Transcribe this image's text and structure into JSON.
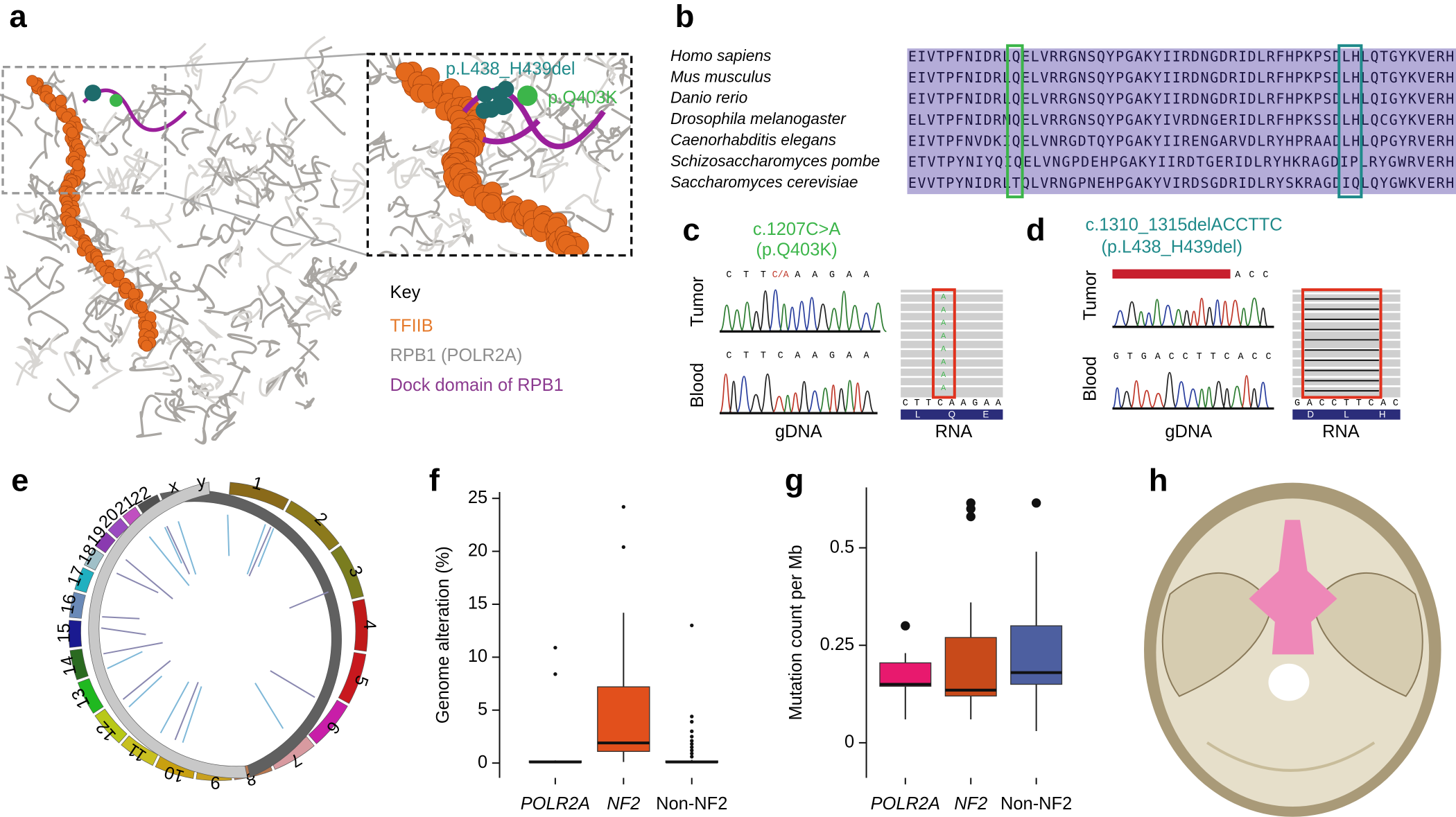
{
  "panels": [
    "a",
    "b",
    "c",
    "d",
    "e",
    "f",
    "g",
    "h"
  ],
  "panel_a": {
    "inset_labels": [
      "p.L438_H439del",
      "p.Q403K"
    ],
    "key_title": "Key",
    "key": [
      "TFIIB",
      "RPB1 (POLR2A)",
      "Dock domain of RPB1"
    ]
  },
  "panel_b": {
    "species": [
      "Homo sapiens",
      "Mus musculus",
      "Danio rerio",
      "Drosophila melanogaster",
      "Caenorhabditis elegans",
      "Schizosaccharomyces pombe",
      "Saccharomyces cerevisiae"
    ],
    "sequences": [
      "EIVTPFNIDRLQELVRRGNSQYPGAKYIIRDNGDRIDLRFHPKPSDLHLQTGYKVERH",
      "EIVTPFNIDRLQELVRRGNSQYPGAKYIIRDNGDRIDLRFHPKPSDLHLQTGYKVERH",
      "EIVTPFNIDRLQELVRRGNSQYPGAKYIIRDNGDRIDLRFHPKPSDLHLQIGYKVERH",
      "ELVTPFNIDRMQELVRRGNSQYPGAKYIVRDNGERIDLRFHPKSSDLHLQCGYKVERH",
      "EIVTPFNVDKIQELVNRGDTQYPGAKYIIRENGARVDLRYHPRAADLHLQPGYRVERH",
      "ETVTPYNIYQIQELVNGPDEHPGAKYIIRDTGERIDLRYHKRAGDIPLRYGWRVERH",
      "EVVTPYNIDRLTQLVRNGPNEHPGAKYVIRDSGDRIDLRYSKRAGDIQLQYGWKVERH"
    ]
  },
  "panel_c": {
    "title": [
      "c.1207C>A",
      "(p.Q403K)"
    ],
    "rows": [
      "Tumor",
      "Blood"
    ],
    "columns": [
      "gDNA",
      "RNA"
    ],
    "tumor_seq": [
      "C",
      "T",
      "T",
      "C/A",
      "A",
      "A",
      "G",
      "A",
      "A"
    ],
    "blood_seq": [
      "C",
      "T",
      "T",
      "C",
      "A",
      "A",
      "G",
      "A",
      "A"
    ],
    "rna_seq": [
      "C",
      "T",
      "T",
      "C",
      "A",
      "A",
      "G",
      "A",
      "A"
    ],
    "protein": [
      "L",
      "Q",
      "E"
    ]
  },
  "panel_d": {
    "title": [
      "c.1310_1315delACCTTC",
      "(p.L438_H439del)"
    ],
    "rows": [
      "Tumor",
      "Blood"
    ],
    "columns": [
      "gDNA",
      "RNA"
    ],
    "tumor_seq": [
      "A",
      "C",
      "C"
    ],
    "blood_seq": [
      "G",
      "T",
      "G",
      "A",
      "C",
      "C",
      "T",
      "T",
      "C",
      "A",
      "C",
      "C"
    ],
    "rna_seq": [
      "G",
      "A",
      "C",
      "C",
      "T",
      "T",
      "C",
      "A",
      "C"
    ],
    "protein": [
      "D",
      "L",
      "H"
    ]
  },
  "panel_e": {
    "chromosomes": [
      "1",
      "2",
      "3",
      "4",
      "5",
      "6",
      "7",
      "8",
      "9",
      "10",
      "11",
      "12",
      "13",
      "14",
      "15",
      "16",
      "17",
      "18",
      "19",
      "20",
      "21",
      "22",
      "x",
      "y"
    ]
  },
  "chart_data": [
    {
      "type": "box",
      "ylabel": "Genome alteration (%)",
      "categories": [
        "POLR2A",
        "NF2",
        "Non-NF2"
      ],
      "ylim": [
        -1.4,
        25.6
      ],
      "yticks": [
        0,
        5,
        10,
        15,
        20,
        25
      ],
      "boxes": [
        {
          "color": "#a3306a",
          "min": 0,
          "q1": 0.05,
          "median": 0.1,
          "q3": 0.2,
          "max": 0.25,
          "outliers": [
            8.4,
            10.9
          ]
        },
        {
          "color": "#e2501c",
          "min": 0.1,
          "q1": 1.1,
          "median": 1.9,
          "q3": 7.2,
          "max": 14.2,
          "outliers": [
            20.4,
            24.2
          ]
        },
        {
          "color": "#4a5a9a",
          "min": 0,
          "q1": 0.05,
          "median": 0.1,
          "q3": 0.2,
          "max": 0.3,
          "outliers": [
            0.6,
            0.9,
            1.2,
            1.5,
            1.8,
            2.1,
            2.5,
            3.0,
            3.9,
            4.4,
            13.0
          ]
        }
      ]
    },
    {
      "type": "box",
      "ylabel": "Mutation count per Mb",
      "categories": [
        "POLR2A",
        "NF2",
        "Non-NF2"
      ],
      "ylim": [
        -0.09,
        0.655
      ],
      "yticks": [
        0,
        0.25,
        0.5
      ],
      "boxes": [
        {
          "color": "#e8196e",
          "min": 0.06,
          "q1": 0.145,
          "median": 0.15,
          "q3": 0.205,
          "max": 0.23,
          "outliers": [
            0.3
          ]
        },
        {
          "color": "#c84a1a",
          "min": 0.06,
          "q1": 0.12,
          "median": 0.135,
          "q3": 0.27,
          "max": 0.36,
          "outliers": [
            0.58,
            0.6,
            0.615
          ]
        },
        {
          "color": "#4d5fa0",
          "min": 0.03,
          "q1": 0.15,
          "median": 0.18,
          "q3": 0.3,
          "max": 0.49,
          "outliers": [
            0.615
          ]
        }
      ]
    }
  ]
}
